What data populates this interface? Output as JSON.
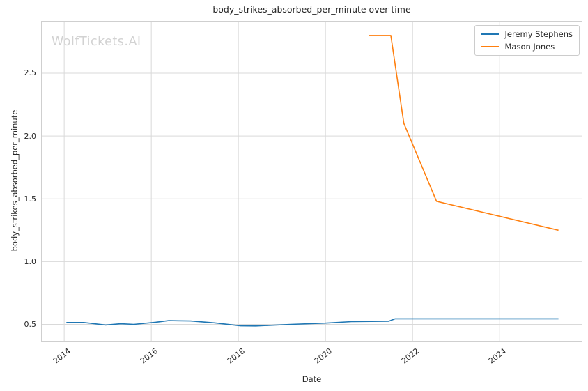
{
  "watermark": {
    "text": "WolfTickets.AI",
    "color": "#d2d2d2"
  },
  "chart_data": {
    "type": "line",
    "title": "body_strikes_absorbed_per_minute over time",
    "xlabel": "Date",
    "ylabel": "body_strikes_absorbed_per_minute",
    "xlim": [
      2013.47,
      2025.9
    ],
    "ylim": [
      0.364,
      2.916
    ],
    "x_ticks": [
      2014,
      2016,
      2018,
      2020,
      2022,
      2024
    ],
    "y_ticks": [
      0.5,
      1.0,
      1.5,
      2.0,
      2.5
    ],
    "grid": true,
    "grid_color": "#d9d9d9",
    "border_color": "#cfcfcf",
    "legend_position": "upper right",
    "series": [
      {
        "name": "Jeremy Stephens",
        "color": "#1f77b4",
        "points": [
          [
            2014.05,
            0.515
          ],
          [
            2014.45,
            0.515
          ],
          [
            2014.95,
            0.495
          ],
          [
            2015.3,
            0.505
          ],
          [
            2015.6,
            0.5
          ],
          [
            2016.1,
            0.517
          ],
          [
            2016.4,
            0.53
          ],
          [
            2016.9,
            0.527
          ],
          [
            2017.45,
            0.512
          ],
          [
            2018.05,
            0.488
          ],
          [
            2018.4,
            0.487
          ],
          [
            2019.2,
            0.5
          ],
          [
            2020.0,
            0.51
          ],
          [
            2020.6,
            0.522
          ],
          [
            2021.45,
            0.525
          ],
          [
            2021.6,
            0.545
          ],
          [
            2025.35,
            0.545
          ]
        ]
      },
      {
        "name": "Mason Jones",
        "color": "#ff7f0e",
        "points": [
          [
            2021.0,
            2.8
          ],
          [
            2021.5,
            2.8
          ],
          [
            2021.8,
            2.1
          ],
          [
            2022.55,
            1.48
          ],
          [
            2025.35,
            1.25
          ]
        ]
      }
    ]
  }
}
